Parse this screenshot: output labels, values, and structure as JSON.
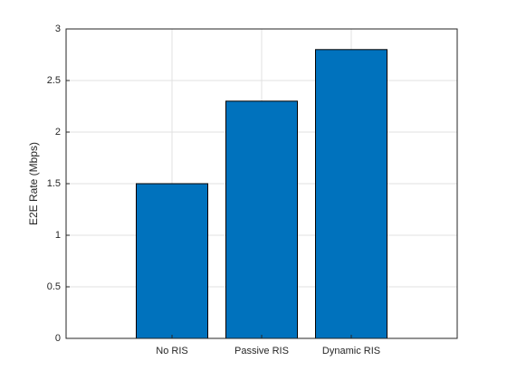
{
  "chart_data": {
    "type": "bar",
    "y_label": "E2E Rate (Mbps)",
    "categories": [
      "No RIS",
      "Passive RIS",
      "Dynamic RIS"
    ],
    "values": [
      1.5,
      2.3,
      2.8
    ],
    "color": "#0072bd",
    "ylim": [
      0,
      3
    ],
    "yticks": [
      0,
      0.5,
      1,
      1.5,
      2,
      2.5,
      3
    ],
    "grid": true
  }
}
